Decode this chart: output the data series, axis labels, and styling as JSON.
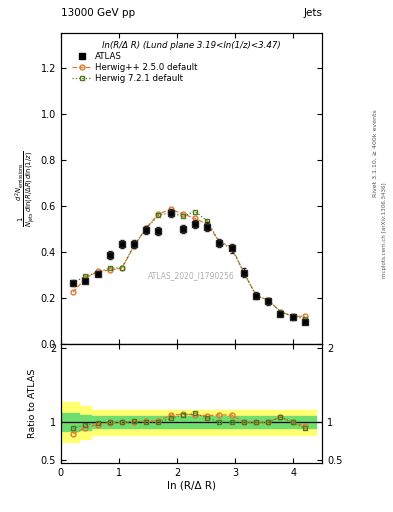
{
  "title_left": "13000 GeV pp",
  "title_right": "Jets",
  "annotation": "ln(R/Δ R) (Lund plane 3.19<ln(1/z)<3.47)",
  "watermark": "ATLAS_2020_I1790256",
  "ylabel_main_line1": "d",
  "ylabel_ratio": "Ratio to ATLAS",
  "xlabel": "ln (R/Δ R)",
  "right_label": "Rivet 3.1.10, ≥ 400k events",
  "right_label2": "mcplots.cern.ch [arXiv:1306.3436]",
  "atlas_x": [
    0.21,
    0.42,
    0.63,
    0.84,
    1.05,
    1.26,
    1.47,
    1.68,
    1.89,
    2.1,
    2.31,
    2.52,
    2.73,
    2.94,
    3.15,
    3.36,
    3.57,
    3.78,
    3.99,
    4.2
  ],
  "atlas_y": [
    0.265,
    0.275,
    0.305,
    0.385,
    0.435,
    0.435,
    0.495,
    0.49,
    0.57,
    0.5,
    0.52,
    0.51,
    0.44,
    0.415,
    0.31,
    0.21,
    0.185,
    0.13,
    0.115,
    0.095
  ],
  "atlas_yerr": [
    0.012,
    0.012,
    0.012,
    0.018,
    0.018,
    0.018,
    0.018,
    0.018,
    0.018,
    0.018,
    0.018,
    0.018,
    0.018,
    0.018,
    0.018,
    0.014,
    0.014,
    0.01,
    0.01,
    0.01
  ],
  "hpp_x": [
    0.21,
    0.42,
    0.63,
    0.84,
    1.05,
    1.26,
    1.47,
    1.68,
    1.89,
    2.1,
    2.31,
    2.52,
    2.73,
    2.94,
    3.15,
    3.36,
    3.57,
    3.78,
    3.99,
    4.2
  ],
  "hpp_y": [
    0.225,
    0.285,
    0.315,
    0.32,
    0.33,
    0.425,
    0.505,
    0.565,
    0.585,
    0.565,
    0.545,
    0.52,
    0.445,
    0.42,
    0.31,
    0.21,
    0.19,
    0.14,
    0.12,
    0.12
  ],
  "h721_x": [
    0.21,
    0.42,
    0.63,
    0.84,
    1.05,
    1.26,
    1.47,
    1.68,
    1.89,
    2.1,
    2.31,
    2.52,
    2.73,
    2.94,
    3.15,
    3.36,
    3.57,
    3.78,
    3.99,
    4.2
  ],
  "h721_y": [
    0.265,
    0.295,
    0.31,
    0.33,
    0.33,
    0.43,
    0.5,
    0.56,
    0.57,
    0.555,
    0.575,
    0.535,
    0.44,
    0.415,
    0.31,
    0.21,
    0.19,
    0.14,
    0.12,
    0.11
  ],
  "band_x": [
    0.0,
    0.21,
    0.42,
    0.63,
    0.84,
    1.05,
    1.26,
    1.47,
    1.68,
    1.89,
    2.1,
    2.31,
    2.52,
    2.73,
    2.94,
    3.15,
    3.36,
    3.57,
    3.78,
    3.99,
    4.2,
    4.4
  ],
  "band_yellow_lo": [
    0.73,
    0.73,
    0.78,
    0.83,
    0.83,
    0.83,
    0.83,
    0.83,
    0.83,
    0.83,
    0.83,
    0.83,
    0.83,
    0.83,
    0.83,
    0.83,
    0.83,
    0.83,
    0.83,
    0.83,
    0.83,
    0.83
  ],
  "band_yellow_hi": [
    1.27,
    1.27,
    1.22,
    1.17,
    1.17,
    1.17,
    1.17,
    1.17,
    1.17,
    1.17,
    1.17,
    1.17,
    1.17,
    1.17,
    1.17,
    1.17,
    1.17,
    1.17,
    1.17,
    1.17,
    1.17,
    1.17
  ],
  "band_green_lo": [
    0.88,
    0.88,
    0.9,
    0.92,
    0.92,
    0.92,
    0.92,
    0.92,
    0.92,
    0.92,
    0.92,
    0.92,
    0.92,
    0.92,
    0.92,
    0.92,
    0.92,
    0.92,
    0.92,
    0.92,
    0.92,
    0.92
  ],
  "band_green_hi": [
    1.12,
    1.12,
    1.1,
    1.08,
    1.08,
    1.08,
    1.08,
    1.08,
    1.08,
    1.08,
    1.08,
    1.08,
    1.08,
    1.08,
    1.08,
    1.08,
    1.08,
    1.08,
    1.08,
    1.08,
    1.08,
    1.08
  ],
  "hpp_ratio": [
    0.849,
    0.93,
    0.967,
    0.994,
    1.0,
    1.008,
    1.018,
    1.02,
    1.097,
    1.108,
    1.098,
    1.09,
    1.098,
    1.098,
    1.0,
    1.0,
    1.0,
    1.07,
    1.0,
    0.95
  ],
  "h721_ratio": [
    0.92,
    0.968,
    0.99,
    1.002,
    1.0,
    1.012,
    1.0,
    1.0,
    1.052,
    1.098,
    1.118,
    1.06,
    1.0,
    0.998,
    1.0,
    1.0,
    1.0,
    1.07,
    1.0,
    0.92
  ],
  "color_hpp": "#e07830",
  "color_h721": "#507820",
  "color_atlas": "#222222",
  "color_yellow": "#ffff70",
  "color_green": "#70dd70",
  "xlim": [
    0.0,
    4.5
  ],
  "ylim_main": [
    0.0,
    1.35
  ],
  "ylim_ratio": [
    0.45,
    2.05
  ]
}
